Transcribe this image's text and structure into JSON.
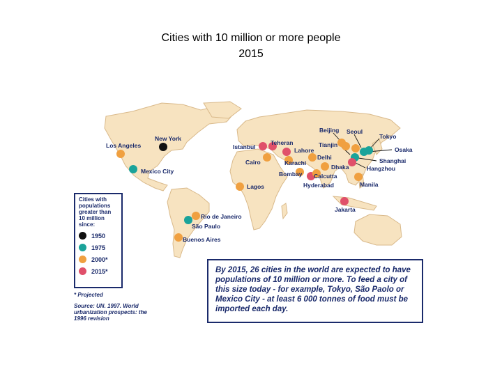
{
  "title_line1": "Cities with 10 million or more people",
  "title_line2": "2015",
  "legend": {
    "title": "Cities with populations greater than 10 million since:",
    "items": [
      {
        "label": "1950",
        "color": "#111111"
      },
      {
        "label": "1975",
        "color": "#1aa39a"
      },
      {
        "label": "2000*",
        "color": "#f0a040"
      },
      {
        "label": "2015*",
        "color": "#e0506a"
      }
    ]
  },
  "note": "* Projected",
  "source": "Source: UN. 1997. World urbanization prospects: the 1996 revision",
  "box_text": "By 2015, 26 cities in the world are expected to have populations of 10 million or more. To feed a city of this size today - for example, Tokyo, São Paolo or Mexico City - at least 6 000 tonnes of food must be imported each day.",
  "colors": {
    "land": "#f7e3c0",
    "coast": "#d9b98a",
    "label": "#1a2a6b"
  },
  "cities": [
    {
      "name": "New York",
      "period": "1950"
    },
    {
      "name": "Los Angeles",
      "period": "2000*"
    },
    {
      "name": "Mexico City",
      "period": "1975"
    },
    {
      "name": "Rio de Janeiro",
      "period": "2000*"
    },
    {
      "name": "São Paulo",
      "period": "1975"
    },
    {
      "name": "Buenos Aires",
      "period": "2000*"
    },
    {
      "name": "Lagos",
      "period": "2000*"
    },
    {
      "name": "Cairo",
      "period": "2000*"
    },
    {
      "name": "Istanbul",
      "period": "2015*"
    },
    {
      "name": "Teheran",
      "period": "2015*"
    },
    {
      "name": "Karachi",
      "period": "2000*"
    },
    {
      "name": "Lahore",
      "period": "2015*"
    },
    {
      "name": "Delhi",
      "period": "2000*"
    },
    {
      "name": "Bombay",
      "period": "2000*"
    },
    {
      "name": "Hyderabad",
      "period": "2015*"
    },
    {
      "name": "Calcutta",
      "period": "2000*"
    },
    {
      "name": "Dhaka",
      "period": "2000*"
    },
    {
      "name": "Beijing",
      "period": "2000*"
    },
    {
      "name": "Tianjin",
      "period": "2000*"
    },
    {
      "name": "Seoul",
      "period": "2000*"
    },
    {
      "name": "Tokyo",
      "period": "1975"
    },
    {
      "name": "Osaka",
      "period": "1975"
    },
    {
      "name": "Shanghai",
      "period": "1975"
    },
    {
      "name": "Hangzhou",
      "period": "2015*"
    },
    {
      "name": "Manila",
      "period": "2000*"
    },
    {
      "name": "Jakarta",
      "period": "2015*"
    }
  ]
}
